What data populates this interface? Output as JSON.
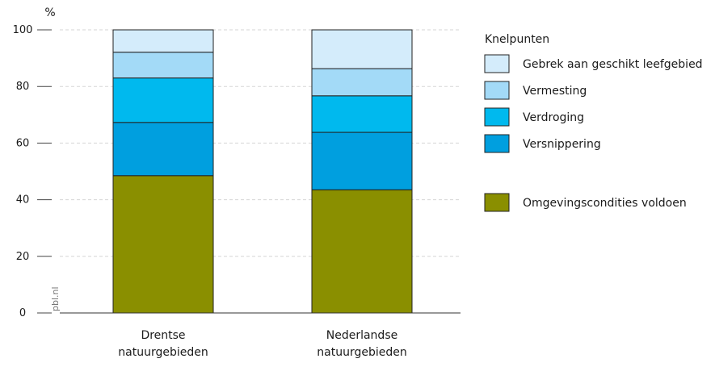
{
  "chart_data": {
    "type": "bar",
    "stacked": true,
    "ylabel": "%",
    "ylim": [
      0,
      100
    ],
    "yticks": [
      0,
      20,
      40,
      60,
      80,
      100
    ],
    "grid": true,
    "categories": [
      [
        "Drentse",
        "natuurgebieden"
      ],
      [
        "Nederlandse",
        "natuurgebieden"
      ]
    ],
    "legend_title": "Knelpunten",
    "legend_position": "right",
    "series": [
      {
        "name": "Omgevingscondities voldoen",
        "color": "#8a8f00",
        "values": [
          48.5,
          43.5
        ]
      },
      {
        "name": "Versnippering",
        "color": "#009fdf",
        "values": [
          18.8,
          20.3
        ]
      },
      {
        "name": "Verdroging",
        "color": "#00b9ee",
        "values": [
          15.7,
          12.9
        ]
      },
      {
        "name": "Vermesting",
        "color": "#a3daf7",
        "values": [
          9.1,
          9.6
        ]
      },
      {
        "name": "Gebrek aan geschikt leefgebied",
        "color": "#d4ecfb",
        "values": [
          7.9,
          13.7
        ]
      }
    ],
    "legend_order": [
      4,
      3,
      2,
      1,
      0
    ],
    "source": "pbl.nl"
  }
}
